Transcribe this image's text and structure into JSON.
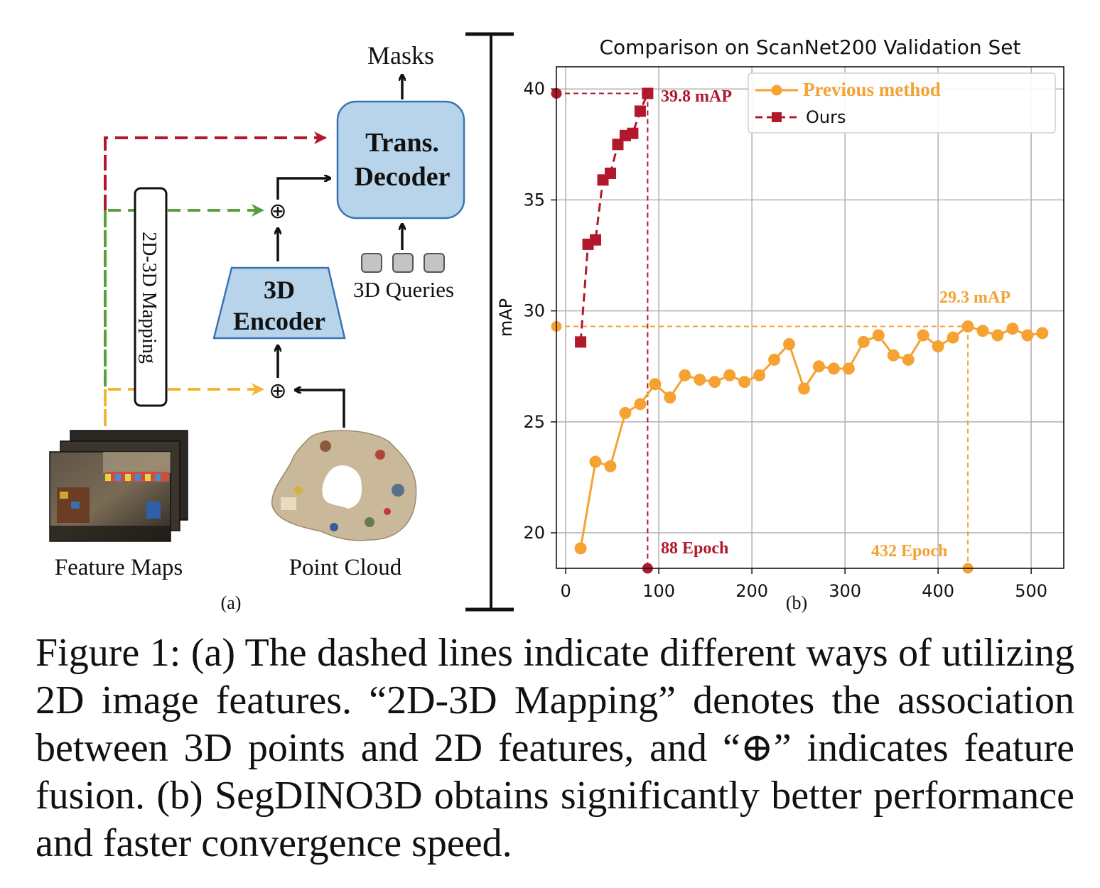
{
  "diagram": {
    "masks_label": "Masks",
    "decoder_line1": "Trans.",
    "decoder_line2": "Decoder",
    "encoder_line1": "3D",
    "encoder_line2": "Encoder",
    "queries_label": "3D Queries",
    "mapping_label": "2D-3D Mapping",
    "feature_maps_label": "Feature Maps",
    "point_cloud_label": "Point Cloud",
    "fusion_symbol": "⊕",
    "panel_a_label": "(a)",
    "panel_b_label": "(b)"
  },
  "colors": {
    "red": "#b2182b",
    "green": "#5a9e3e",
    "yellow": "#f2b632",
    "orange": "#f5a233",
    "box_fill": "#b7d4ea",
    "box_stroke": "#3a73b0",
    "query_fill": "#c4c4c4"
  },
  "chart_data": {
    "type": "line",
    "title": "Comparison on ScanNet200 Validation Set",
    "xlabel": "",
    "ylabel": "mAP",
    "xlim": [
      -10,
      535
    ],
    "ylim": [
      18.4,
      41
    ],
    "xticks": [
      0,
      100,
      200,
      300,
      400,
      500
    ],
    "yticks": [
      20,
      25,
      30,
      35,
      40
    ],
    "grid": true,
    "legend_position": "top-right",
    "series": [
      {
        "name": "Previous method",
        "style": "solid-circle",
        "color": "#f5a233",
        "x": [
          16,
          32,
          48,
          64,
          80,
          96,
          112,
          128,
          144,
          160,
          176,
          192,
          208,
          224,
          240,
          256,
          272,
          288,
          304,
          320,
          336,
          352,
          368,
          384,
          400,
          416,
          432,
          448,
          464,
          480,
          496,
          512
        ],
        "y": [
          19.3,
          23.2,
          23.0,
          25.4,
          25.8,
          26.7,
          26.1,
          27.1,
          26.9,
          26.8,
          27.1,
          26.8,
          27.1,
          27.8,
          28.5,
          26.5,
          27.5,
          27.4,
          27.4,
          28.6,
          28.9,
          28.0,
          27.8,
          28.9,
          28.4,
          28.8,
          29.3,
          29.1,
          28.9,
          29.2,
          28.9,
          29.0
        ]
      },
      {
        "name": "Ours",
        "style": "dashed-square",
        "color": "#b2182b",
        "x": [
          16,
          24,
          32,
          40,
          48,
          56,
          64,
          72,
          80,
          88
        ],
        "y": [
          28.6,
          33.0,
          33.2,
          35.9,
          36.2,
          37.5,
          37.9,
          38.0,
          39.0,
          39.8
        ]
      }
    ],
    "annotations": {
      "ours_best": "39.8 mAP",
      "ours_epoch": "88 Epoch",
      "prev_best": "29.3 mAP",
      "prev_epoch": "432 Epoch"
    },
    "ref_points": {
      "ours": {
        "x": 88,
        "y": 39.8
      },
      "prev": {
        "x": 432,
        "y": 29.3
      }
    }
  },
  "caption": "Figure 1: (a) The dashed lines indicate different ways of utilizing 2D image features. “2D-3D Mapping” denotes the association between 3D points and 2D features, and “⊕” indicates feature fusion. (b) SegDINO3D obtains significantly better performance and faster convergence speed."
}
